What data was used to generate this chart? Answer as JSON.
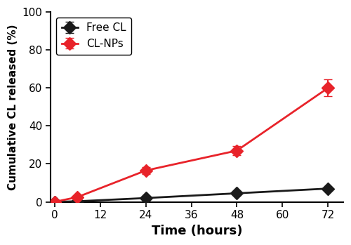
{
  "time_points": [
    0,
    6,
    24,
    48,
    72
  ],
  "free_cl_values": [
    0,
    0.3,
    2.0,
    4.5,
    7.0
  ],
  "free_cl_errors": [
    0,
    0.1,
    0.3,
    0.3,
    0.4
  ],
  "cl_nps_values": [
    0,
    2.5,
    16.5,
    27.0,
    60.0
  ],
  "cl_nps_errors": [
    0,
    0.3,
    1.8,
    2.5,
    4.5
  ],
  "free_cl_color": "#1a1a1a",
  "cl_nps_color": "#e8232a",
  "xlabel": "Time (hours)",
  "ylabel": "Cumulative CL released (%)",
  "free_cl_label": "Free CL",
  "cl_nps_label": "CL-NPs",
  "xlim": [
    -1,
    76
  ],
  "ylim": [
    0,
    100
  ],
  "xticks": [
    0,
    12,
    24,
    36,
    48,
    60,
    72
  ],
  "yticks": [
    0,
    20,
    40,
    60,
    80,
    100
  ],
  "marker_size": 9,
  "linewidth": 2.0,
  "capsize": 4,
  "elinewidth": 1.5
}
